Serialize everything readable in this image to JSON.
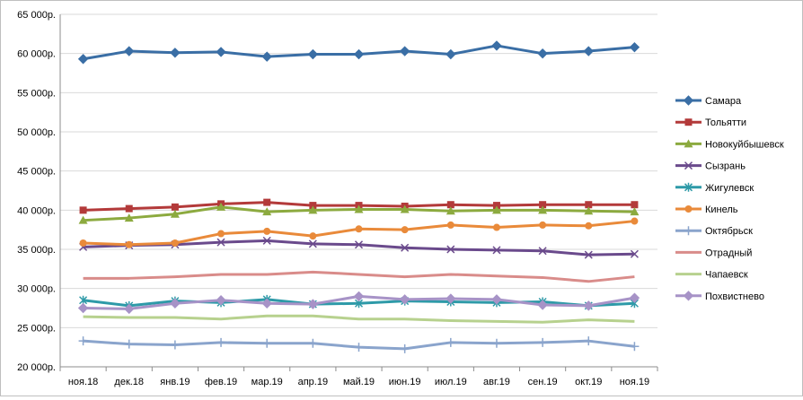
{
  "chart_data": {
    "type": "line",
    "categories": [
      "ноя.18",
      "дек.18",
      "янв.19",
      "фев.19",
      "мар.19",
      "апр.19",
      "май.19",
      "июн.19",
      "июл.19",
      "авг.19",
      "сен.19",
      "окт.19",
      "ноя.19"
    ],
    "y_ticks": [
      "20 000р.",
      "25 000р.",
      "30 000р.",
      "35 000р.",
      "40 000р.",
      "45 000р.",
      "50 000р.",
      "55 000р.",
      "60 000р.",
      "65 000р."
    ],
    "ylim": [
      20000,
      65000
    ],
    "grid": true,
    "legend_position": "right",
    "series": [
      {
        "name": "Самара",
        "color": "#3a6ea5",
        "marker": "diamond",
        "values": [
          59300,
          60300,
          60100,
          60200,
          59600,
          59900,
          59900,
          60300,
          59900,
          61000,
          60000,
          60300,
          60800
        ]
      },
      {
        "name": "Тольятти",
        "color": "#b33a3a",
        "marker": "square",
        "values": [
          40000,
          40200,
          40400,
          40800,
          41000,
          40600,
          40600,
          40500,
          40700,
          40600,
          40700,
          40700,
          40700
        ]
      },
      {
        "name": "Новокуйбышевск",
        "color": "#8caa3f",
        "marker": "triangle",
        "values": [
          38700,
          39000,
          39500,
          40400,
          39800,
          40000,
          40100,
          40100,
          39900,
          40000,
          40000,
          39900,
          39800
        ]
      },
      {
        "name": "Сызрань",
        "color": "#6a4a8c",
        "marker": "x",
        "values": [
          35300,
          35500,
          35600,
          35900,
          36100,
          35700,
          35600,
          35200,
          35000,
          34900,
          34800,
          34300,
          34400
        ]
      },
      {
        "name": "Жигулевск",
        "color": "#2e9aa8",
        "marker": "star",
        "values": [
          28500,
          27800,
          28400,
          28200,
          28600,
          28000,
          28100,
          28400,
          28300,
          28200,
          28300,
          27800,
          28100
        ]
      },
      {
        "name": "Кинель",
        "color": "#e98a3a",
        "marker": "circle",
        "values": [
          35800,
          35600,
          35800,
          37000,
          37300,
          36700,
          37600,
          37500,
          38100,
          37800,
          38100,
          38000,
          38600
        ]
      },
      {
        "name": "Октябрьск",
        "color": "#8aa4cc",
        "marker": "plus",
        "values": [
          23300,
          22900,
          22800,
          23100,
          23000,
          23000,
          22500,
          22300,
          23100,
          23000,
          23100,
          23300,
          22600
        ]
      },
      {
        "name": "Отрадный",
        "color": "#d98c8a",
        "marker": "none",
        "values": [
          31300,
          31300,
          31500,
          31800,
          31800,
          32100,
          31800,
          31500,
          31800,
          31600,
          31400,
          30900,
          31500
        ]
      },
      {
        "name": "Чапаевск",
        "color": "#b7d18e",
        "marker": "none",
        "values": [
          26400,
          26300,
          26300,
          26100,
          26500,
          26500,
          26100,
          26100,
          25900,
          25800,
          25700,
          26000,
          25800
        ]
      },
      {
        "name": "Похвистнево",
        "color": "#a793c7",
        "marker": "diamond",
        "values": [
          27500,
          27400,
          28100,
          28500,
          28100,
          28000,
          29000,
          28600,
          28700,
          28600,
          27900,
          27800,
          28800
        ]
      }
    ]
  }
}
